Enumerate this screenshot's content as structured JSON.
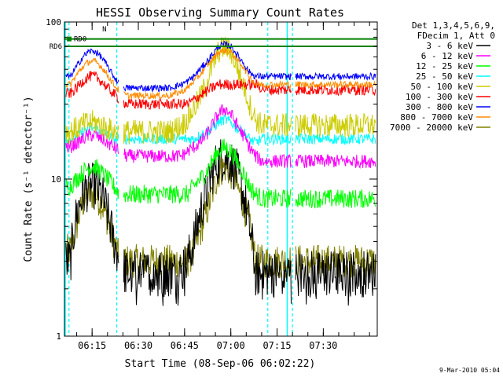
{
  "chart_data": {
    "type": "line",
    "title": "HESSI Observing Summary Count Rates",
    "xlabel": "Start Time (08-Sep-06 06:02:22)",
    "ylabel": "Count Rate (s⁻¹ detector⁻¹)",
    "yscale": "log",
    "ylim": [
      1,
      100
    ],
    "xlim_minutes": [
      6.03,
      107.5
    ],
    "x_unit": "minutes from 06:00 UT",
    "xticks": [
      {
        "m": 15,
        "label": "06:15"
      },
      {
        "m": 30,
        "label": "06:30"
      },
      {
        "m": 45,
        "label": "06:45"
      },
      {
        "m": 60,
        "label": "07:00"
      },
      {
        "m": 75,
        "label": "07:15"
      },
      {
        "m": 90,
        "label": "07:30"
      }
    ],
    "yticks": [
      {
        "v": 1,
        "label": "1"
      },
      {
        "v": 10,
        "label": "10"
      },
      {
        "v": 100,
        "label": "100"
      }
    ],
    "legend_header": [
      "Det 1,3,4,5,6,9,",
      "FDecim 1, Att 0"
    ],
    "legend_position": "right",
    "grid": false,
    "date_stamp": "9-Mar-2010 05:04",
    "annotations": [
      {
        "text": "RD0",
        "color": "#008000"
      },
      {
        "text": "RD6",
        "color": "#008000"
      },
      {
        "text": "N",
        "color": "#00c0c0"
      }
    ],
    "night_markers_minutes": [
      7.5,
      23,
      72,
      80
    ],
    "night_marker_color": "#00ffff",
    "rd0_level": 78,
    "rd6_level": 70,
    "x": [
      8,
      10,
      12,
      14,
      16,
      18,
      20,
      22,
      24,
      26,
      28,
      30,
      32,
      34,
      36,
      38,
      40,
      42,
      44,
      46,
      48,
      50,
      52,
      54,
      56,
      58,
      60,
      62,
      64,
      66,
      68,
      70,
      72,
      74,
      76,
      78,
      80,
      82,
      84,
      86,
      88,
      90,
      92,
      94,
      96,
      98,
      100,
      102,
      104,
      106
    ],
    "series": [
      {
        "name": "3 - 6 keV",
        "color": "#000000",
        "values": [
          3,
          6,
          8,
          9,
          9,
          8,
          6,
          4,
          3,
          2.5,
          2.5,
          2.5,
          2.5,
          2.5,
          2.5,
          2.5,
          2.5,
          2.5,
          2.5,
          3,
          4,
          6,
          8,
          11,
          13,
          14,
          13,
          11,
          8,
          5,
          2.5,
          2.5,
          2.5,
          2.5,
          2.5,
          2.5,
          2.5,
          2.5,
          2.5,
          2.5,
          2.5,
          2.5,
          2.5,
          2.5,
          2.5,
          2.5,
          2.5,
          2.5,
          2.5,
          2.5
        ]
      },
      {
        "name": "6 - 12 keV",
        "color": "#ff00ff",
        "values": [
          16,
          17,
          18,
          19,
          19,
          18,
          17,
          16,
          15,
          14,
          14,
          14,
          14,
          14,
          14,
          14,
          14,
          14,
          14,
          15,
          16,
          17,
          19,
          22,
          26,
          28,
          26,
          22,
          19,
          16,
          14,
          13,
          13,
          13,
          13,
          13,
          13,
          13,
          13,
          13,
          13,
          13,
          13,
          13,
          13,
          13,
          13,
          13,
          13,
          13
        ]
      },
      {
        "name": "12 - 25 keV",
        "color": "#00ff00",
        "values": [
          9,
          10,
          11,
          12,
          12,
          11,
          10,
          9,
          8,
          8,
          8,
          8,
          8,
          8,
          8,
          8,
          8,
          8,
          8,
          8,
          9,
          10,
          11,
          13,
          15,
          16,
          15,
          13,
          11,
          9,
          8,
          7.5,
          7.5,
          7.5,
          7.5,
          7.5,
          7.5,
          7.5,
          7.5,
          7.5,
          7.5,
          7.5,
          7.5,
          7.5,
          7.5,
          7.5,
          7.5,
          7.5,
          7.5,
          7.5
        ]
      },
      {
        "name": "25 - 50 keV",
        "color": "#00ffff",
        "values": [
          18,
          19,
          20,
          21,
          21,
          20,
          19,
          18,
          18,
          18,
          18,
          18,
          18,
          18,
          18,
          18,
          18,
          18,
          18,
          18,
          18,
          19,
          20,
          21,
          23,
          24,
          23,
          21,
          20,
          18,
          17,
          18,
          18,
          18,
          18,
          18,
          18,
          18,
          18,
          18,
          18,
          18,
          18,
          18,
          18,
          18,
          18,
          18,
          18,
          18
        ]
      },
      {
        "name": "50 - 100 keV",
        "color": "#cccc00",
        "values": [
          20,
          21,
          22,
          23,
          23,
          22,
          21,
          20,
          20,
          20,
          20,
          20,
          20,
          20,
          20,
          20,
          20,
          21,
          22,
          24,
          28,
          33,
          40,
          52,
          65,
          70,
          65,
          52,
          40,
          30,
          24,
          22,
          22,
          22,
          22,
          22,
          22,
          22,
          22,
          22,
          22,
          22,
          22,
          22,
          22,
          22,
          22,
          22,
          22,
          22
        ]
      },
      {
        "name": "100 - 300 keV",
        "color": "#ff0000",
        "values": [
          35,
          38,
          42,
          45,
          45,
          42,
          38,
          35,
          32,
          30,
          30,
          30,
          30,
          30,
          30,
          30,
          30,
          30,
          30,
          30,
          32,
          34,
          36,
          38,
          40,
          40,
          40,
          40,
          40,
          40,
          40,
          38,
          37,
          37,
          37,
          37,
          37,
          37,
          37,
          37,
          37,
          37,
          37,
          37,
          37,
          37,
          37,
          37,
          37,
          37
        ]
      },
      {
        "name": "300 - 800 keV",
        "color": "#0000ff",
        "values": [
          45,
          52,
          60,
          65,
          65,
          60,
          52,
          45,
          40,
          38,
          38,
          38,
          38,
          38,
          38,
          38,
          38,
          39,
          40,
          42,
          45,
          50,
          55,
          62,
          70,
          72,
          70,
          62,
          55,
          48,
          45,
          45,
          45,
          45,
          45,
          45,
          45,
          45,
          45,
          45,
          45,
          45,
          45,
          45,
          45,
          45,
          45,
          45,
          45,
          45
        ]
      },
      {
        "name": "800 - 7000 keV",
        "color": "#ff8c00",
        "values": [
          40,
          46,
          52,
          56,
          56,
          52,
          46,
          40,
          36,
          34,
          34,
          34,
          34,
          34,
          34,
          34,
          34,
          35,
          36,
          38,
          42,
          46,
          52,
          58,
          64,
          66,
          64,
          58,
          52,
          45,
          40,
          40,
          40,
          40,
          40,
          40,
          40,
          40,
          40,
          40,
          40,
          40,
          40,
          40,
          40,
          40,
          40,
          40,
          40,
          40
        ]
      },
      {
        "name": "7000 - 20000 keV",
        "color": "#808000",
        "values": [
          3.5,
          5,
          7,
          8,
          8,
          7,
          5.5,
          4,
          3,
          3,
          3,
          3,
          3,
          3,
          3,
          3,
          3,
          3,
          3,
          3,
          3.5,
          4.5,
          6,
          8,
          11,
          12,
          11,
          9,
          7,
          5,
          3,
          3,
          3,
          3,
          3,
          3,
          3,
          3,
          3,
          3,
          3,
          3,
          3,
          3,
          3,
          3,
          3,
          3,
          3,
          3
        ]
      }
    ]
  }
}
